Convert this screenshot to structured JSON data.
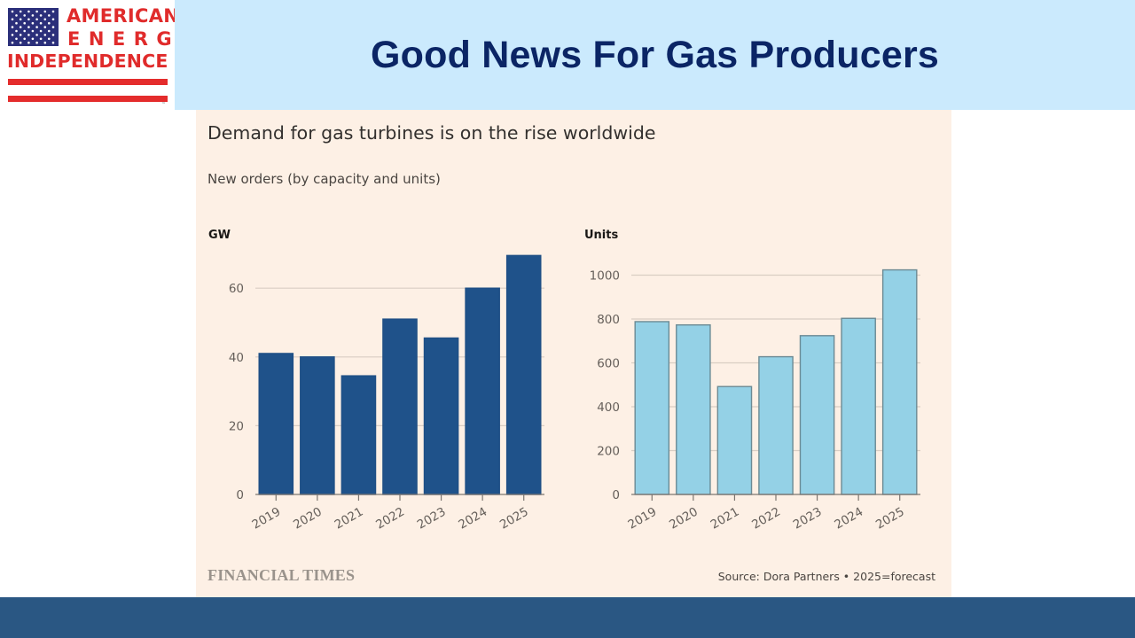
{
  "logo": {
    "line1": "AMERICAN",
    "line2": "ENERGY",
    "line3": "INDEPENDENCE",
    "tm": "™",
    "colors": {
      "red": "#e42c2c",
      "navy": "#2b2f7a"
    }
  },
  "header": {
    "title": "Good News For Gas Producers"
  },
  "panel": {
    "title": "Demand for gas turbines is on the rise worldwide",
    "subtitle": "New orders (by capacity and units)",
    "publisher": "FINANCIAL TIMES",
    "source": "Source: Dora Partners • 2025=forecast"
  },
  "chart_data": [
    {
      "type": "bar",
      "title": "Demand for gas turbines is on the rise worldwide",
      "subtitle": "New orders (by capacity and units)",
      "ylabel": "GW",
      "xlabel": "",
      "categories": [
        "2019",
        "2020",
        "2021",
        "2022",
        "2023",
        "2024",
        "2025"
      ],
      "values": [
        41,
        40,
        34.5,
        51,
        45.5,
        60,
        69.5
      ],
      "ylim": [
        0,
        70
      ],
      "yticks": [
        0,
        20,
        40,
        60
      ],
      "grid": true,
      "color": "#1f528a",
      "note": "2025=forecast"
    },
    {
      "type": "bar",
      "title": "Demand for gas turbines is on the rise worldwide",
      "subtitle": "New orders (by capacity and units)",
      "ylabel": "Units",
      "xlabel": "",
      "categories": [
        "2019",
        "2020",
        "2021",
        "2022",
        "2023",
        "2024",
        "2025"
      ],
      "values": [
        788,
        773,
        492,
        628,
        724,
        803,
        1024
      ],
      "ylim": [
        0,
        1030
      ],
      "yticks": [
        0,
        200,
        400,
        600,
        800,
        1000
      ],
      "grid": true,
      "color": "#94d1e6",
      "note": "2025=forecast"
    }
  ]
}
